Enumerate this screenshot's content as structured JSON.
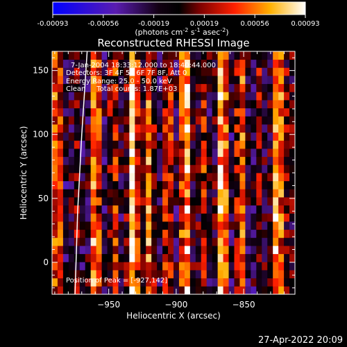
{
  "colorbar": {
    "ticks": [
      "-0.00093",
      "-0.00056",
      "-0.00019",
      "0.00019",
      "0.00056",
      "0.00093"
    ],
    "units_main": "(photons cm",
    "units_exp1": "-2",
    "units_mid": " s",
    "units_exp2": "-1",
    "units_tail": " asec",
    "units_exp3": "-2",
    "units_close": ")"
  },
  "annotations": {
    "time": "7-Jan-2004 18:33:12.000 to 18:40:44.000",
    "detectors": "Detectors: 3F 4F 5F 6F 7F 8F, Att 0",
    "energy": "Energy Range: 25.0 - 50.0 keV",
    "clean": "Clean     Total counts: 1.87E+03",
    "peak": "Position of Peak = [-927,142]"
  },
  "footer": {
    "date": "27-Apr-2022 20:09"
  },
  "chart_data": {
    "type": "heatmap",
    "title": "Reconstructed RHESSI Image",
    "xlabel": "Heliocentric X (arcsec)",
    "ylabel": "Heliocentric Y (arcsec)",
    "xlim": [
      -992,
      -812
    ],
    "ylim": [
      -25,
      165
    ],
    "xticks": [
      -950,
      -900,
      -850
    ],
    "xtick_labels": [
      "−950",
      "−900",
      "−850"
    ],
    "yticks": [
      0,
      50,
      100,
      150
    ],
    "ytick_labels": [
      "0",
      "50",
      "100",
      "150"
    ],
    "colorbar_range": [
      -0.00093,
      0.00093
    ],
    "colormap": "blue-purple-black-red-yellow-white",
    "stripe_centers_x": [
      -988,
      -974,
      -960,
      -946,
      -932,
      -920,
      -906,
      -893,
      -880,
      -866,
      -852,
      -838,
      -825,
      -816
    ],
    "stripe_strengths": [
      0.75,
      0.35,
      0.8,
      0.55,
      0.95,
      0.7,
      0.6,
      0.85,
      0.5,
      0.9,
      0.65,
      0.4,
      0.85,
      0.3
    ],
    "peak_position": [
      -927,
      142
    ],
    "limb_curve": [
      [
        -975,
        -25
      ],
      [
        -973,
        40
      ],
      [
        -970,
        100
      ],
      [
        -966,
        165
      ]
    ]
  }
}
